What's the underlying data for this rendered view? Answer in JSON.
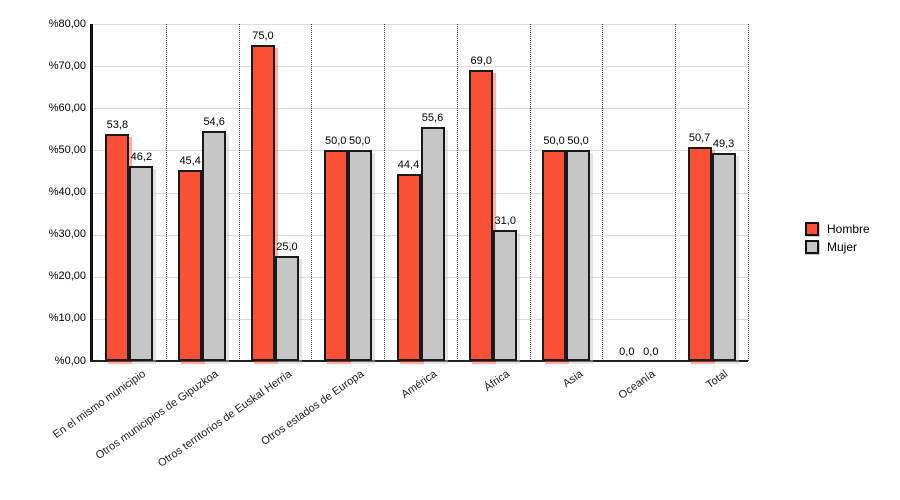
{
  "chart_data": {
    "type": "bar",
    "title": "",
    "xlabel": "",
    "ylabel": "",
    "categories": [
      "En el mismo municipio",
      "Otros municipios de Gipuzkoa",
      "Otros territorios de Euskal Herria",
      "Otros estados de Europa",
      "América",
      "África",
      "Asia",
      "Oceanía",
      "Total"
    ],
    "series": [
      {
        "name": "Hombre",
        "color": "#FA5136",
        "values": [
          53.8,
          45.4,
          75.0,
          50.0,
          44.4,
          69.0,
          50.0,
          0.0,
          50.7
        ],
        "labels": [
          "53,8",
          "45,4",
          "75,0",
          "50,0",
          "44,4",
          "69,0",
          "50,0",
          "0,0",
          "50,7"
        ]
      },
      {
        "name": "Mujer",
        "color": "#C6C6C6",
        "values": [
          46.2,
          54.6,
          25.0,
          50.0,
          55.6,
          31.0,
          50.0,
          0.0,
          49.3
        ],
        "labels": [
          "46,2",
          "54,6",
          "25,0",
          "50,0",
          "55,6",
          "31,0",
          "50,0",
          "0,0",
          "49,3"
        ]
      }
    ],
    "y_axis": {
      "ylim": [
        0,
        80
      ],
      "tick_step": 10,
      "tick_labels": [
        "%80,00",
        "%70,00",
        "%60,00",
        "%50,00",
        "%40,00",
        "%30,00",
        "%20,00",
        "%10,00",
        "%0,00"
      ]
    },
    "grid": true,
    "category_separators": "dotted",
    "legend": {
      "position": "right",
      "entries": [
        "Hombre",
        "Mujer"
      ]
    }
  }
}
